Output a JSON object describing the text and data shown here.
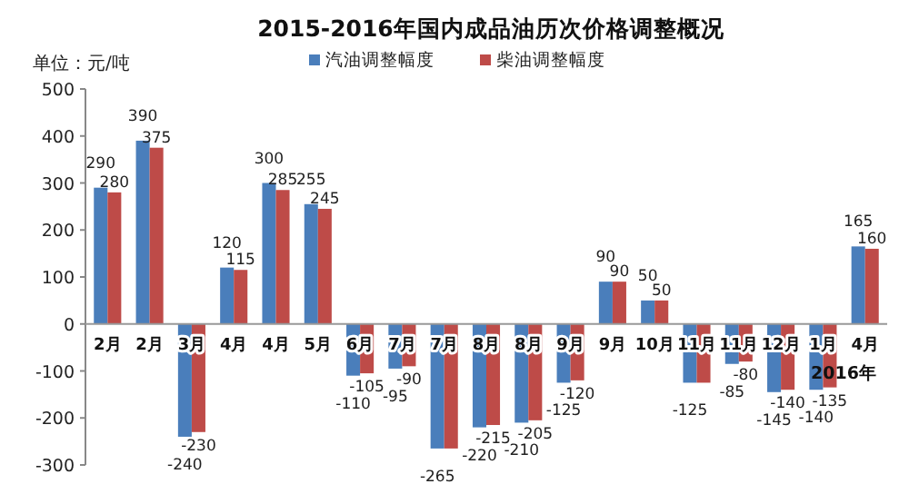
{
  "chart_data": {
    "type": "bar",
    "title": "2015-2016年国内成品油历次价格调整概况",
    "ylabel": "单位：元/吨",
    "categories": [
      "2月",
      "2月",
      "3月",
      "4月",
      "4月",
      "5月",
      "6月",
      "7月",
      "7月",
      "8月",
      "8月",
      "9月",
      "9月",
      "10月",
      "11月",
      "11月",
      "12月",
      "1月",
      "4月"
    ],
    "series": [
      {
        "name": "汽油调整幅度",
        "color": "#4a7ebb",
        "values": [
          290,
          390,
          -240,
          120,
          300,
          255,
          -110,
          -95,
          -265,
          -220,
          -210,
          -125,
          90,
          50,
          -125,
          -85,
          -145,
          -140,
          165
        ],
        "value_labels": [
          "290",
          "390",
          "-240",
          "120",
          "300",
          "255",
          "-110",
          "-95",
          "-265",
          "-220",
          "-210",
          "-125",
          "90",
          "50",
          "-125",
          "-85",
          "-145",
          "-140",
          "165"
        ]
      },
      {
        "name": "柴油调整幅度",
        "color": "#be4b48",
        "values": [
          280,
          375,
          -230,
          115,
          285,
          245,
          -105,
          -90,
          -265,
          -215,
          -205,
          -120,
          90,
          50,
          -125,
          -80,
          -140,
          -135,
          160
        ],
        "value_labels": [
          "280",
          "375",
          "-230",
          "115",
          "285",
          "245",
          "-105",
          "-90",
          null,
          "-215",
          "-205",
          "-120",
          "90",
          "50",
          null,
          "-80",
          "-140",
          "-135",
          "160"
        ]
      }
    ],
    "ylim": [
      -300,
      500
    ],
    "yticks": [
      -300,
      -200,
      -100,
      0,
      100,
      200,
      300,
      400,
      500
    ],
    "annotations": [
      "2016年"
    ],
    "legend": "top",
    "grid": false
  }
}
